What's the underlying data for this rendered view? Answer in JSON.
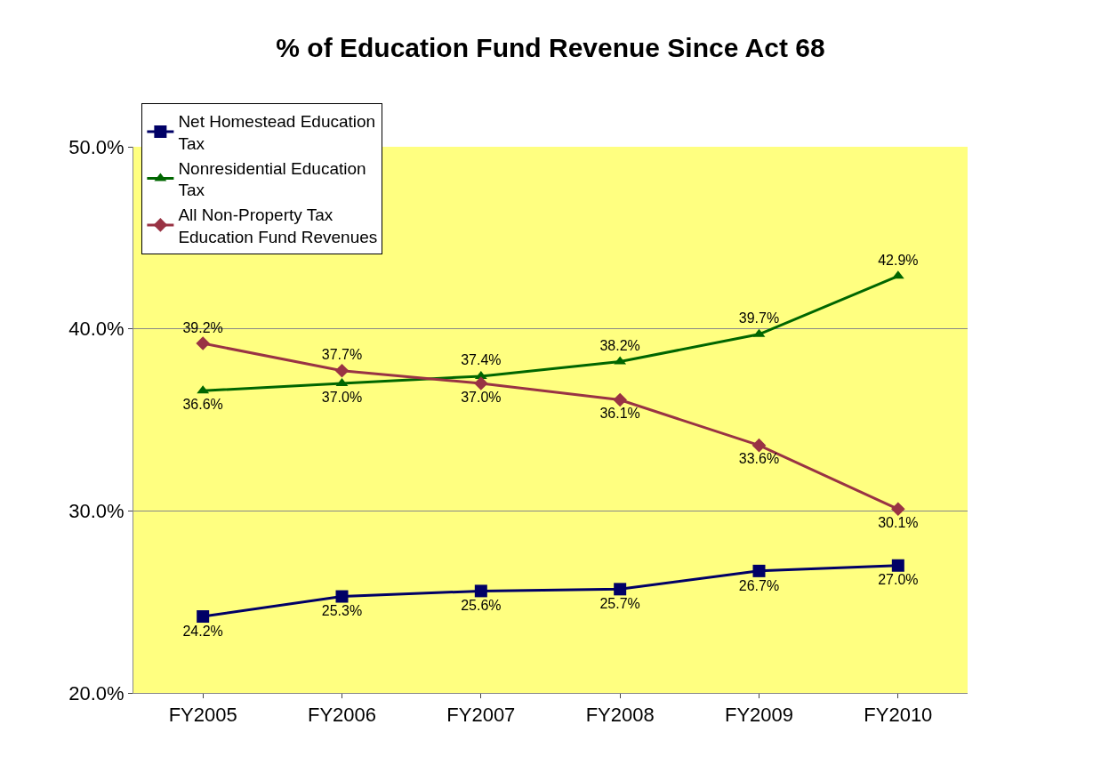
{
  "chart_data": {
    "type": "line",
    "title": "% of Education Fund Revenue Since Act 68",
    "categories": [
      "FY2005",
      "FY2006",
      "FY2007",
      "FY2008",
      "FY2009",
      "FY2010"
    ],
    "series": [
      {
        "name": "Net Homestead Education Tax",
        "color": "#000066",
        "marker": "square",
        "values": [
          24.2,
          25.3,
          25.6,
          25.7,
          26.7,
          27.0
        ],
        "value_labels": [
          "24.2%",
          "25.3%",
          "25.6%",
          "25.7%",
          "26.7%",
          "27.0%"
        ]
      },
      {
        "name": "Nonresidential Education Tax",
        "color": "#006600",
        "marker": "triangle",
        "values": [
          36.6,
          37.0,
          37.4,
          38.2,
          39.7,
          42.9
        ],
        "value_labels": [
          "36.6%",
          "37.0%",
          "37.4%",
          "38.2%",
          "39.7%",
          "42.9%"
        ]
      },
      {
        "name": "All Non-Property Tax Education Fund Revenues",
        "color": "#993344",
        "marker": "diamond",
        "values": [
          39.2,
          37.7,
          37.0,
          36.1,
          33.6,
          30.1
        ],
        "value_labels": [
          "39.2%",
          "37.7%",
          "37.0%",
          "36.1%",
          "33.6%",
          "30.1%"
        ]
      }
    ],
    "ylim": [
      20,
      50
    ],
    "yticks": [
      {
        "value": 20,
        "label": "20.0%"
      },
      {
        "value": 30,
        "label": "30.0%"
      },
      {
        "value": 40,
        "label": "40.0%"
      },
      {
        "value": 50,
        "label": "50.0%"
      }
    ],
    "grid": "y",
    "legend": "top left",
    "line_style": "solid"
  }
}
